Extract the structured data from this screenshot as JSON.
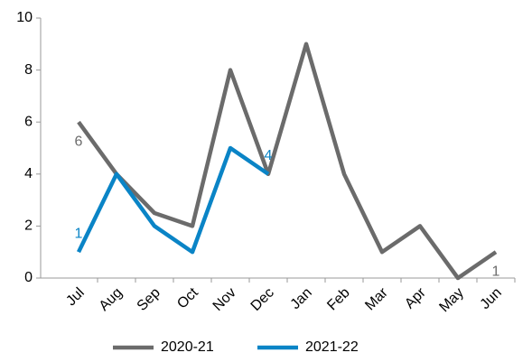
{
  "chart_data": {
    "type": "line",
    "categories": [
      "Jul",
      "Aug",
      "Sep",
      "Oct",
      "Nov",
      "Dec",
      "Jan",
      "Feb",
      "Mar",
      "Apr",
      "May",
      "Jun"
    ],
    "series": [
      {
        "name": "2020-21",
        "color": "#6b6b6b",
        "values": [
          6,
          4,
          2.5,
          2,
          8,
          4,
          9,
          4,
          1,
          2,
          0,
          1
        ]
      },
      {
        "name": "2021-22",
        "color": "#0a84c6",
        "values": [
          1,
          4,
          2,
          1,
          5,
          4,
          null,
          null,
          null,
          null,
          null,
          null
        ]
      }
    ],
    "ylim": [
      0,
      10
    ],
    "yticks": [
      0,
      2,
      4,
      6,
      8,
      10
    ]
  }
}
